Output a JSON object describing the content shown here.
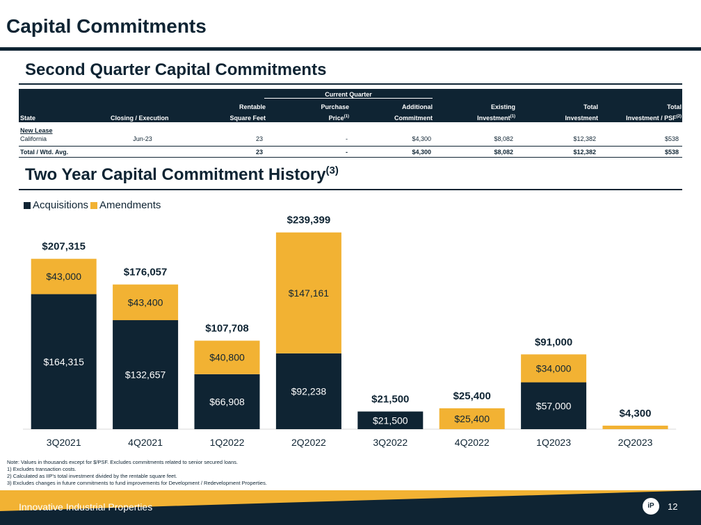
{
  "header": {
    "title": "Capital Commitments"
  },
  "table_section": {
    "title": "Second Quarter Capital Commitments",
    "group_label": "Current Quarter",
    "headers": {
      "state": "State",
      "closing": "Closing / Execution",
      "rsf_1": "Rentable",
      "rsf_2": "Square Feet",
      "purchase_1": "Purchase",
      "purchase_2": "Price",
      "additional_1": "Additional",
      "additional_2": "Commitment",
      "existing_1": "Existing",
      "existing_2": "Investment",
      "total_1": "Total",
      "total_2": "Investment",
      "psf_1": "Total",
      "psf_2": "Investment / PSF",
      "sup1": "(1)",
      "sup2": "(2)"
    },
    "group_row": "New Lease",
    "row": {
      "state": "California",
      "closing": "Jun-23",
      "rsf": "23",
      "purchase": "-",
      "additional": "$4,300",
      "existing": "$8,082",
      "total": "$12,382",
      "psf": "$538"
    },
    "total_row": {
      "label": "Total / Wtd. Avg.",
      "rsf": "23",
      "purchase": "-",
      "additional": "$4,300",
      "existing": "$8,082",
      "total": "$12,382",
      "psf": "$538"
    }
  },
  "chart_section": {
    "title": "Two Year Capital Commitment History",
    "title_sup": "(3)",
    "legend": {
      "acquisitions": "Acquisitions",
      "amendments": "Amendments"
    }
  },
  "colors": {
    "navy": "#0f2433",
    "gold": "#f2b233"
  },
  "chart_data": {
    "type": "bar",
    "stacked": true,
    "categories": [
      "3Q2021",
      "4Q2021",
      "1Q2022",
      "2Q2022",
      "3Q2022",
      "4Q2022",
      "1Q2023",
      "2Q2023"
    ],
    "series": [
      {
        "name": "Acquisitions",
        "values": [
          164315,
          132657,
          66908,
          92238,
          21500,
          0,
          57000,
          0
        ],
        "labels": [
          "$164,315",
          "$132,657",
          "$66,908",
          "$92,238",
          "$21,500",
          "",
          "$57,000",
          ""
        ]
      },
      {
        "name": "Amendments",
        "values": [
          43000,
          43400,
          40800,
          147161,
          0,
          25400,
          34000,
          4300
        ],
        "labels": [
          "$43,000",
          "$43,400",
          "$40,800",
          "$147,161",
          "",
          "$25,400",
          "$34,000",
          ""
        ]
      }
    ],
    "totals": [
      "$207,315",
      "$176,057",
      "$107,708",
      "$239,399",
      "$21,500",
      "$25,400",
      "$91,000",
      "$4,300"
    ],
    "ylim": [
      0,
      240000
    ]
  },
  "notes": [
    "Note: Values in thousands except for $/PSF. Excludes commitments related to senior secured loans.",
    "1)      Excludes transaction costs.",
    "2)      Calculated as IIP's total investment divided by the rentable square feet.",
    "3)      Excludes changes in future commitments to fund improvements for Development / Redevelopment Properties."
  ],
  "footer": {
    "company": "Innovative Industrial Properties",
    "page_number": "12",
    "logo_text": "iP"
  }
}
